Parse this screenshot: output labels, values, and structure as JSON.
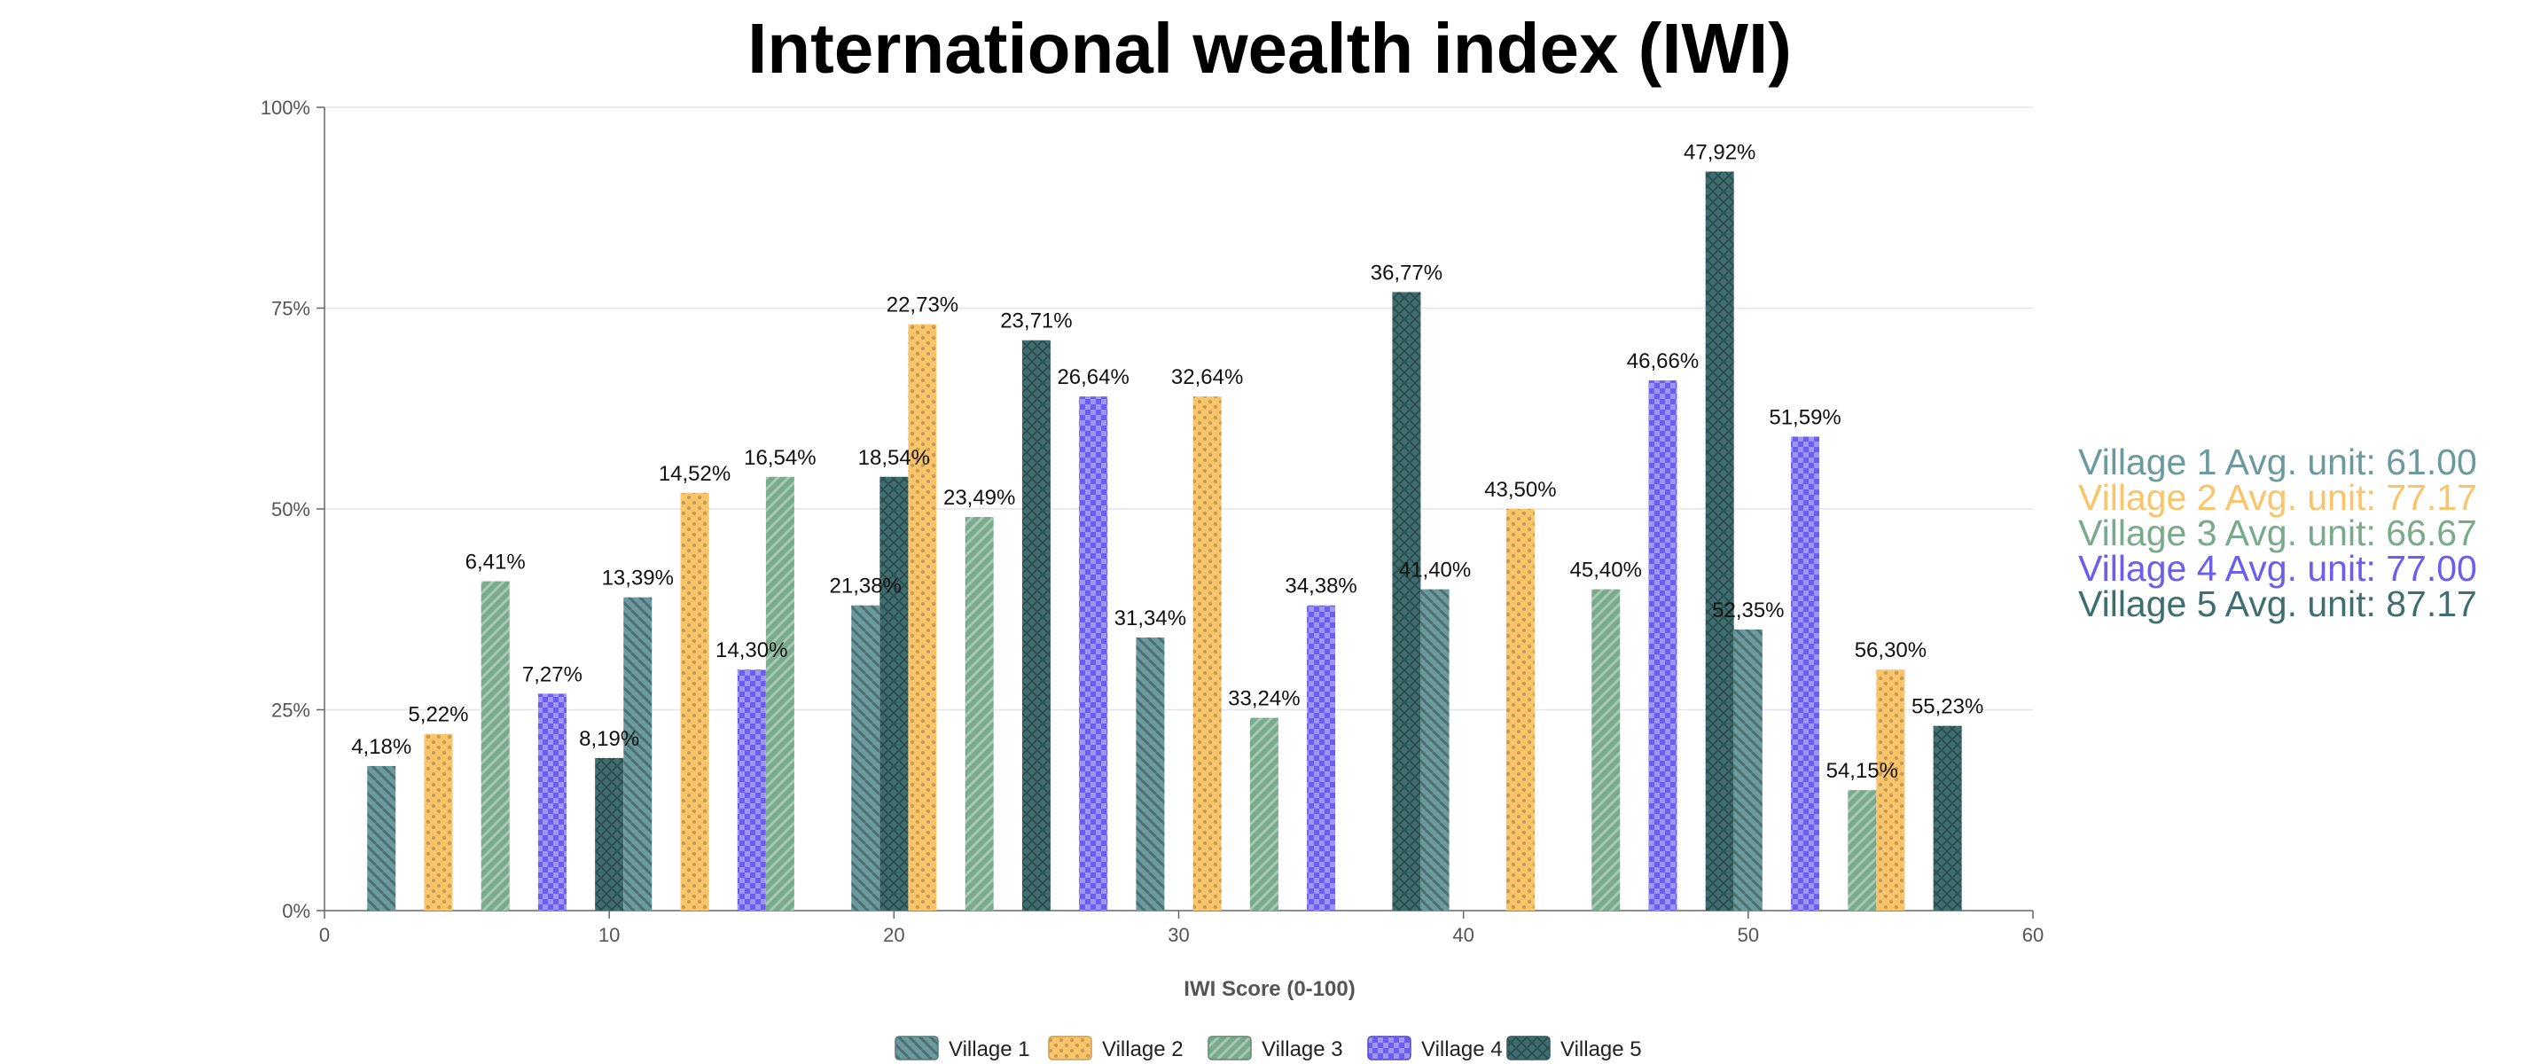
{
  "chart_data": {
    "type": "bar",
    "title": "International wealth index (IWI)",
    "xlabel": "IWI Score (0-100)",
    "ylabel": "",
    "xlim": [
      0,
      60
    ],
    "ylim": [
      0,
      100
    ],
    "x_ticks": [
      "0",
      "10",
      "20",
      "30",
      "40",
      "50",
      "60"
    ],
    "y_ticks": [
      "0%",
      "25%",
      "50%",
      "75%",
      "100%"
    ],
    "grid": true,
    "legend_position": "bottom",
    "series": [
      {
        "name": "Village 1",
        "color": "#6a9a9e",
        "pattern": "diagonal",
        "points": [
          {
            "x": 2,
            "y": 18,
            "label": "4,18%"
          },
          {
            "x": 11,
            "y": 39,
            "label": "13,39%"
          },
          {
            "x": 19,
            "y": 38,
            "label": "21,38%"
          },
          {
            "x": 29,
            "y": 34,
            "label": "31,34%"
          },
          {
            "x": 39,
            "y": 40,
            "label": "41,40%"
          },
          {
            "x": 50,
            "y": 35,
            "label": "52,35%"
          }
        ]
      },
      {
        "name": "Village 2",
        "color": "#f9c46a",
        "pattern": "dots",
        "points": [
          {
            "x": 4,
            "y": 22,
            "label": "5,22%"
          },
          {
            "x": 13,
            "y": 52,
            "label": "14,52%"
          },
          {
            "x": 21,
            "y": 73,
            "label": "22,73%"
          },
          {
            "x": 31,
            "y": 64,
            "label": "32,64%"
          },
          {
            "x": 42,
            "y": 50,
            "label": "43,50%"
          },
          {
            "x": 55,
            "y": 30,
            "label": "56,30%"
          }
        ]
      },
      {
        "name": "Village 3",
        "color": "#7aaa8c",
        "pattern": "stripes",
        "points": [
          {
            "x": 6,
            "y": 41,
            "label": "6,41%"
          },
          {
            "x": 16,
            "y": 54,
            "label": "16,54%"
          },
          {
            "x": 23,
            "y": 49,
            "label": "23,49%"
          },
          {
            "x": 33,
            "y": 24,
            "label": "33,24%"
          },
          {
            "x": 45,
            "y": 40,
            "label": "45,40%"
          },
          {
            "x": 54,
            "y": 15,
            "label": "54,15%"
          }
        ]
      },
      {
        "name": "Village 4",
        "color": "#6b5ded",
        "pattern": "checker",
        "points": [
          {
            "x": 8,
            "y": 27,
            "label": "7,27%"
          },
          {
            "x": 15,
            "y": 30,
            "label": "14,30%"
          },
          {
            "x": 27,
            "y": 64,
            "label": "26,64%"
          },
          {
            "x": 35,
            "y": 38,
            "label": "34,38%"
          },
          {
            "x": 47,
            "y": 66,
            "label": "46,66%"
          },
          {
            "x": 52,
            "y": 59,
            "label": "51,59%"
          }
        ]
      },
      {
        "name": "Village 5",
        "color": "#3f6e70",
        "pattern": "crosshatch",
        "points": [
          {
            "x": 10,
            "y": 19,
            "label": "8,19%"
          },
          {
            "x": 20,
            "y": 54,
            "label": "18,54%"
          },
          {
            "x": 25,
            "y": 71,
            "label": "23,71%"
          },
          {
            "x": 38,
            "y": 77,
            "label": "36,77%"
          },
          {
            "x": 49,
            "y": 92,
            "label": "47,92%"
          },
          {
            "x": 57,
            "y": 23,
            "label": "55,23%"
          }
        ]
      }
    ],
    "averages": [
      {
        "text": "Village 1 Avg. unit: 61.00",
        "color": "#6a9a9e"
      },
      {
        "text": "Village 2 Avg. unit: 77.17",
        "color": "#f9c46a"
      },
      {
        "text": "Village 3 Avg. unit: 66.67",
        "color": "#7aaa8c"
      },
      {
        "text": "Village 4 Avg. unit: 77.00",
        "color": "#6b5ded"
      },
      {
        "text": "Village 5 Avg. unit: 87.17",
        "color": "#3f6e70"
      }
    ]
  }
}
